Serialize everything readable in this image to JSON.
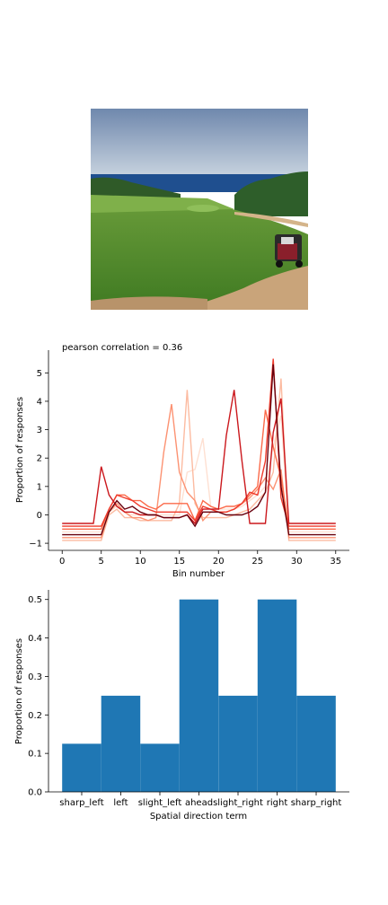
{
  "photo": {
    "description_icon": "golf-course-photo",
    "colors": {
      "sky_top": "#6f88ad",
      "sky_bottom": "#c8d3df",
      "sea": "#1f4f8f",
      "grass": "#4f8a2a",
      "path": "#c9a47a"
    }
  },
  "chart_data": [
    {
      "type": "line",
      "title": "pearson correlation = 0.36",
      "xlabel": "Bin number",
      "ylabel": "Proportion of responses",
      "xlim": [
        -1.75,
        36.75
      ],
      "ylim": [
        -1.25,
        5.8
      ],
      "xticks": [
        0,
        5,
        10,
        15,
        20,
        25,
        30,
        35
      ],
      "yticks": [
        -1,
        0,
        1,
        2,
        3,
        4,
        5
      ],
      "grid": false,
      "series": [
        {
          "color": "#fee0d2",
          "values": [
            -0.6,
            -0.6,
            -0.6,
            -0.6,
            -0.6,
            -0.6,
            0.1,
            0.3,
            0.1,
            0.0,
            0.0,
            0.0,
            0.0,
            0.0,
            0.0,
            0.0,
            1.5,
            1.6,
            2.7,
            0.3,
            0.2,
            0.2,
            0.2,
            0.3,
            0.5,
            0.7,
            1.0,
            2.4,
            3.5,
            -0.6,
            -0.6,
            -0.6,
            -0.6,
            -0.6,
            -0.6,
            -0.6
          ]
        },
        {
          "color": "#fcbba1",
          "values": [
            -0.9,
            -0.9,
            -0.9,
            -0.9,
            -0.9,
            -0.9,
            0.0,
            0.2,
            -0.1,
            -0.1,
            -0.2,
            -0.2,
            -0.2,
            -0.2,
            -0.2,
            0.4,
            4.4,
            0.4,
            -0.1,
            -0.1,
            -0.1,
            -0.1,
            0.0,
            0.1,
            0.2,
            0.5,
            0.8,
            1.5,
            4.8,
            -0.9,
            -0.9,
            -0.9,
            -0.9,
            -0.9,
            -0.9,
            -0.9
          ]
        },
        {
          "color": "#fc9272",
          "values": [
            -0.8,
            -0.8,
            -0.8,
            -0.8,
            -0.8,
            -0.8,
            0.1,
            0.4,
            0.1,
            -0.1,
            -0.1,
            -0.2,
            -0.1,
            2.2,
            3.9,
            1.5,
            0.8,
            0.5,
            -0.2,
            0.1,
            0.1,
            0.1,
            0.2,
            0.4,
            0.6,
            0.9,
            1.3,
            0.9,
            1.6,
            -0.8,
            -0.8,
            -0.8,
            -0.8,
            -0.8,
            -0.8,
            -0.8
          ]
        },
        {
          "color": "#fb6a4a",
          "values": [
            -0.5,
            -0.5,
            -0.5,
            -0.5,
            -0.5,
            -0.5,
            0.2,
            0.7,
            0.7,
            0.5,
            0.5,
            0.3,
            0.2,
            0.4,
            0.4,
            0.4,
            0.4,
            -0.2,
            0.5,
            0.3,
            0.2,
            0.3,
            0.3,
            0.4,
            0.7,
            1.0,
            3.7,
            2.4,
            1.3,
            -0.5,
            -0.5,
            -0.5,
            -0.5,
            -0.5,
            -0.5,
            -0.5
          ]
        },
        {
          "color": "#ef3b2c",
          "values": [
            -0.4,
            -0.4,
            -0.4,
            -0.4,
            -0.4,
            -0.4,
            0.2,
            0.7,
            0.6,
            0.5,
            0.3,
            0.2,
            0.1,
            0.1,
            0.1,
            0.1,
            0.1,
            -0.2,
            0.3,
            0.2,
            0.1,
            0.1,
            0.2,
            0.4,
            0.8,
            0.7,
            1.9,
            5.5,
            0.6,
            -0.4,
            -0.4,
            -0.4,
            -0.4,
            -0.4,
            -0.4,
            -0.4
          ]
        },
        {
          "color": "#cb181d",
          "values": [
            -0.3,
            -0.3,
            -0.3,
            -0.3,
            -0.3,
            1.7,
            0.7,
            0.3,
            0.1,
            0.1,
            0.0,
            0.0,
            0.0,
            -0.1,
            -0.1,
            -0.1,
            0.0,
            -0.3,
            0.2,
            0.2,
            0.2,
            2.8,
            4.4,
            1.9,
            -0.3,
            -0.3,
            -0.3,
            2.9,
            4.1,
            -0.3,
            -0.3,
            -0.3,
            -0.3,
            -0.3,
            -0.3,
            -0.3
          ]
        },
        {
          "color": "#67000d",
          "values": [
            -0.7,
            -0.7,
            -0.7,
            -0.7,
            -0.7,
            -0.7,
            0.1,
            0.5,
            0.2,
            0.3,
            0.1,
            0.0,
            0.0,
            -0.1,
            -0.1,
            -0.1,
            0.0,
            -0.4,
            0.1,
            0.1,
            0.1,
            0.0,
            0.0,
            0.0,
            0.1,
            0.3,
            0.8,
            5.3,
            1.0,
            -0.7,
            -0.7,
            -0.7,
            -0.7,
            -0.7,
            -0.7,
            -0.7
          ]
        }
      ]
    },
    {
      "type": "bar",
      "xlabel": "Spatial direction term",
      "ylabel": "Proportion of responses",
      "categories": [
        "sharp_left",
        "left",
        "slight_left",
        "ahead",
        "slight_right",
        "right",
        "sharp_right"
      ],
      "values": [
        0.125,
        0.25,
        0.125,
        0.5,
        0.25,
        0.5,
        0.25
      ],
      "ylim": [
        0,
        0.525
      ],
      "yticks": [
        "0.0",
        "0.1",
        "0.2",
        "0.3",
        "0.4",
        "0.5"
      ],
      "color": "#1f77b4",
      "grid": false
    }
  ]
}
